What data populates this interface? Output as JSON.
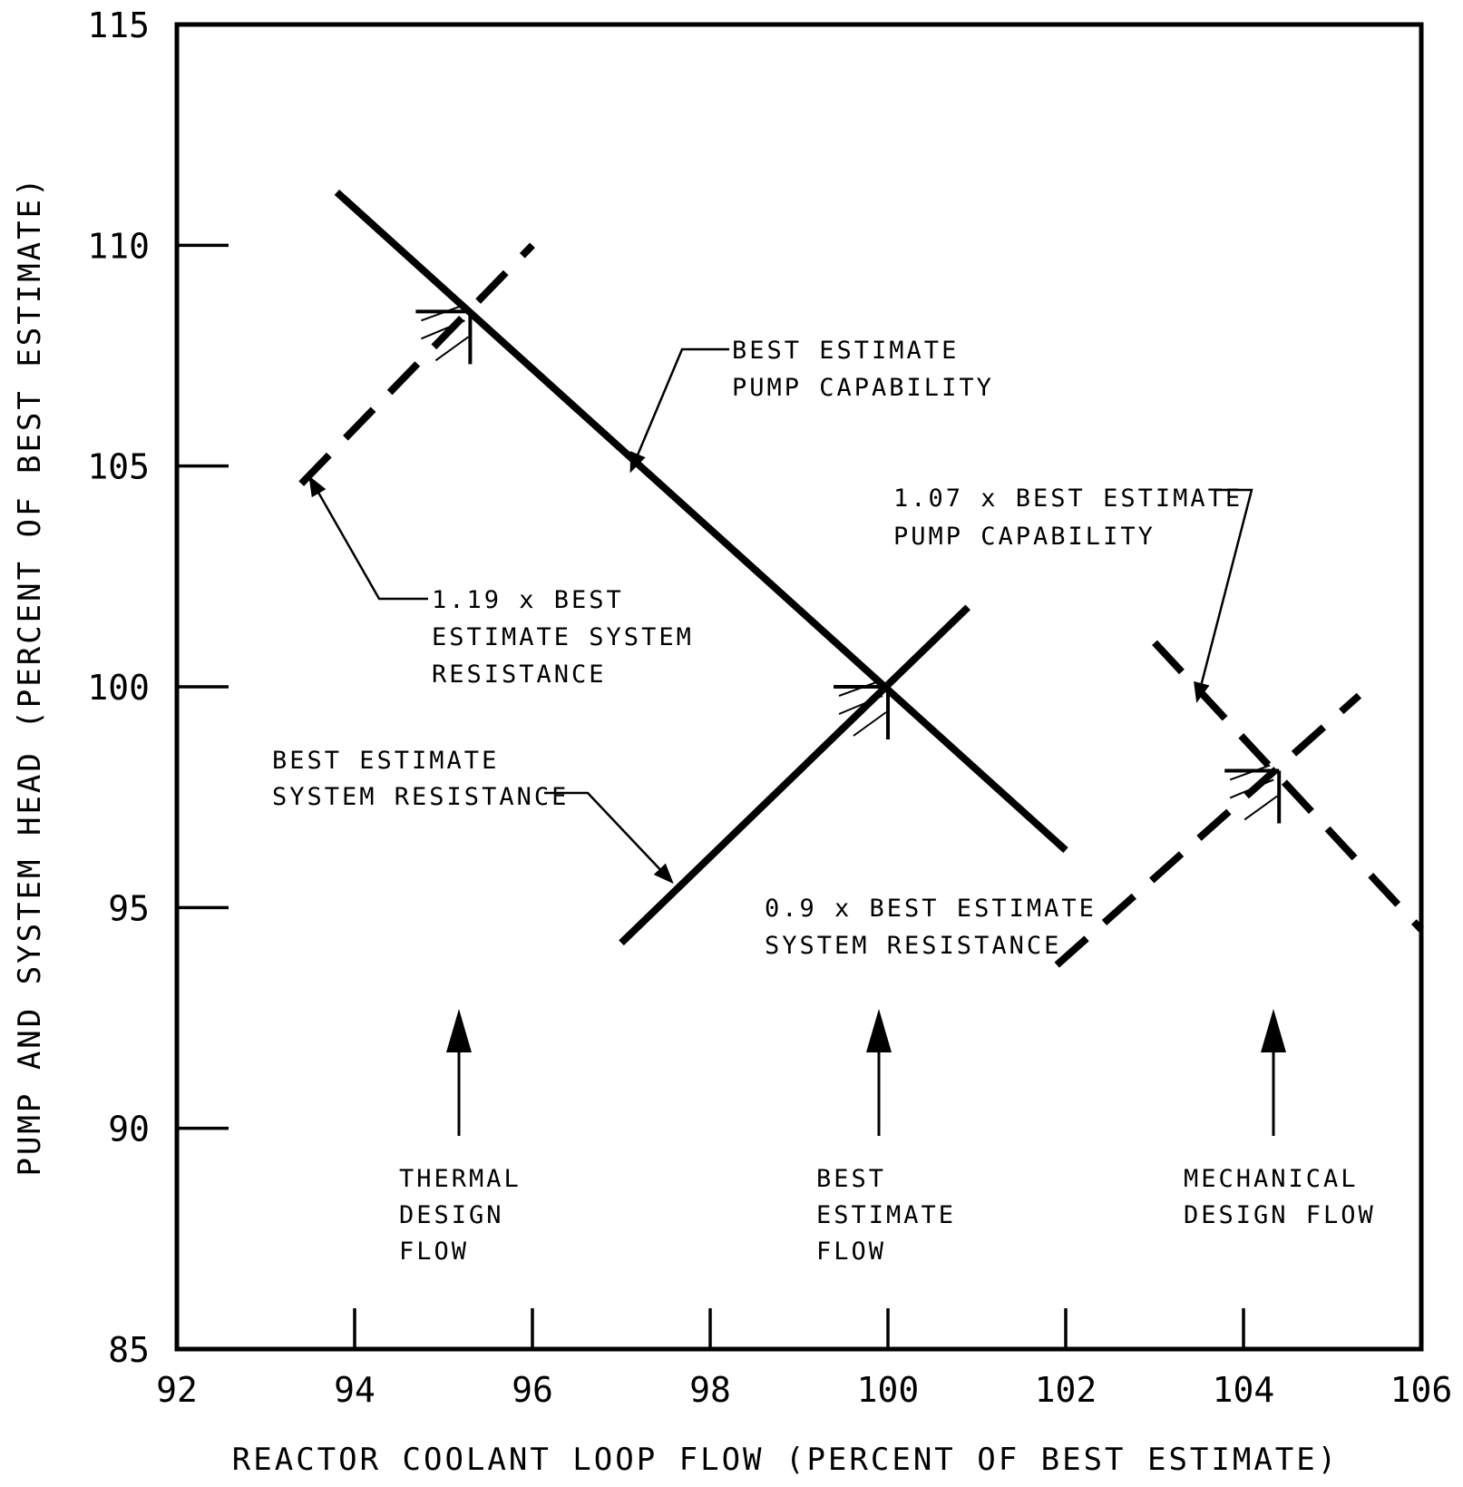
{
  "chart_data": {
    "type": "line",
    "xlabel": "REACTOR COOLANT LOOP FLOW (PERCENT OF BEST ESTIMATE)",
    "ylabel": "PUMP AND SYSTEM HEAD (PERCENT OF BEST ESTIMATE)",
    "xlim": [
      92,
      106
    ],
    "ylim": [
      85,
      115
    ],
    "x_ticks": [
      "92",
      "94",
      "96",
      "98",
      "100",
      "102",
      "104",
      "106"
    ],
    "y_ticks": [
      "85",
      "90",
      "95",
      "100",
      "105",
      "110",
      "115"
    ],
    "series": [
      {
        "style": "solid",
        "x": [
          93.8,
          102.0
        ],
        "y": [
          111.2,
          96.3
        ]
      },
      {
        "style": "solid",
        "x": [
          97.0,
          100.9
        ],
        "y": [
          94.2,
          101.8
        ]
      },
      {
        "style": "dashed",
        "x": [
          93.4,
          96.0
        ],
        "y": [
          104.6,
          110.0
        ]
      },
      {
        "style": "dashed",
        "x": [
          103.0,
          106.0
        ],
        "y": [
          101.0,
          94.5
        ]
      },
      {
        "style": "dashed",
        "x": [
          101.9,
          105.3
        ],
        "y": [
          93.7,
          99.8
        ]
      }
    ],
    "operating_points": [
      {
        "x": 95.3,
        "y": 108.5
      },
      {
        "x": 100.0,
        "y": 100.0
      },
      {
        "x": 104.4,
        "y": 98.1
      }
    ],
    "annotations": {
      "best_pump": [
        "BEST ESTIMATE",
        "PUMP CAPABILITY"
      ],
      "pump_107": [
        "1.07 x BEST ESTIMATE",
        "PUMP CAPABILITY"
      ],
      "sys_119": [
        "1.19 x BEST",
        "ESTIMATE SYSTEM",
        "RESISTANCE"
      ],
      "best_sys": [
        "BEST ESTIMATE",
        "SYSTEM RESISTANCE"
      ],
      "sys_09": [
        "0.9 x BEST ESTIMATE",
        "SYSTEM RESISTANCE"
      ],
      "thermal": [
        "THERMAL",
        "DESIGN",
        "FLOW"
      ],
      "best_flow": [
        "BEST",
        "ESTIMATE",
        "FLOW"
      ],
      "mech": [
        "MECHANICAL",
        "DESIGN FLOW"
      ]
    }
  }
}
